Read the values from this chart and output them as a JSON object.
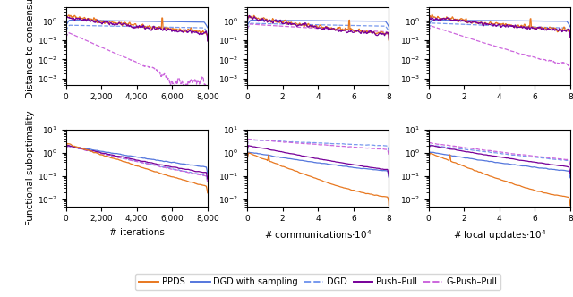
{
  "row_labels": [
    "Distance to consensus",
    "Functional suboptimality"
  ],
  "col_xlabels": [
    "# iterations",
    "# communications",
    "# local updates"
  ],
  "col_xtick_labels": [
    [
      "0",
      "2,000",
      "4,000",
      "6,000",
      "8,000"
    ],
    [
      "0",
      "2",
      "4",
      "6",
      "8"
    ],
    [
      "0",
      "2",
      "4",
      "6",
      "8"
    ]
  ],
  "col_xtick_vals": [
    [
      0,
      2000,
      4000,
      6000,
      8000
    ],
    [
      0,
      20000,
      40000,
      60000,
      80000
    ],
    [
      0,
      20000,
      40000,
      60000,
      80000
    ]
  ],
  "xmax": [
    8000,
    80000,
    80000
  ],
  "colors": {
    "PPDS": "#E87820",
    "DGD_solid": "#5577DD",
    "DGD_dashed": "#7799EE",
    "PushPull": "#770099",
    "GPushPull": "#CC66DD"
  },
  "lw": 0.9
}
